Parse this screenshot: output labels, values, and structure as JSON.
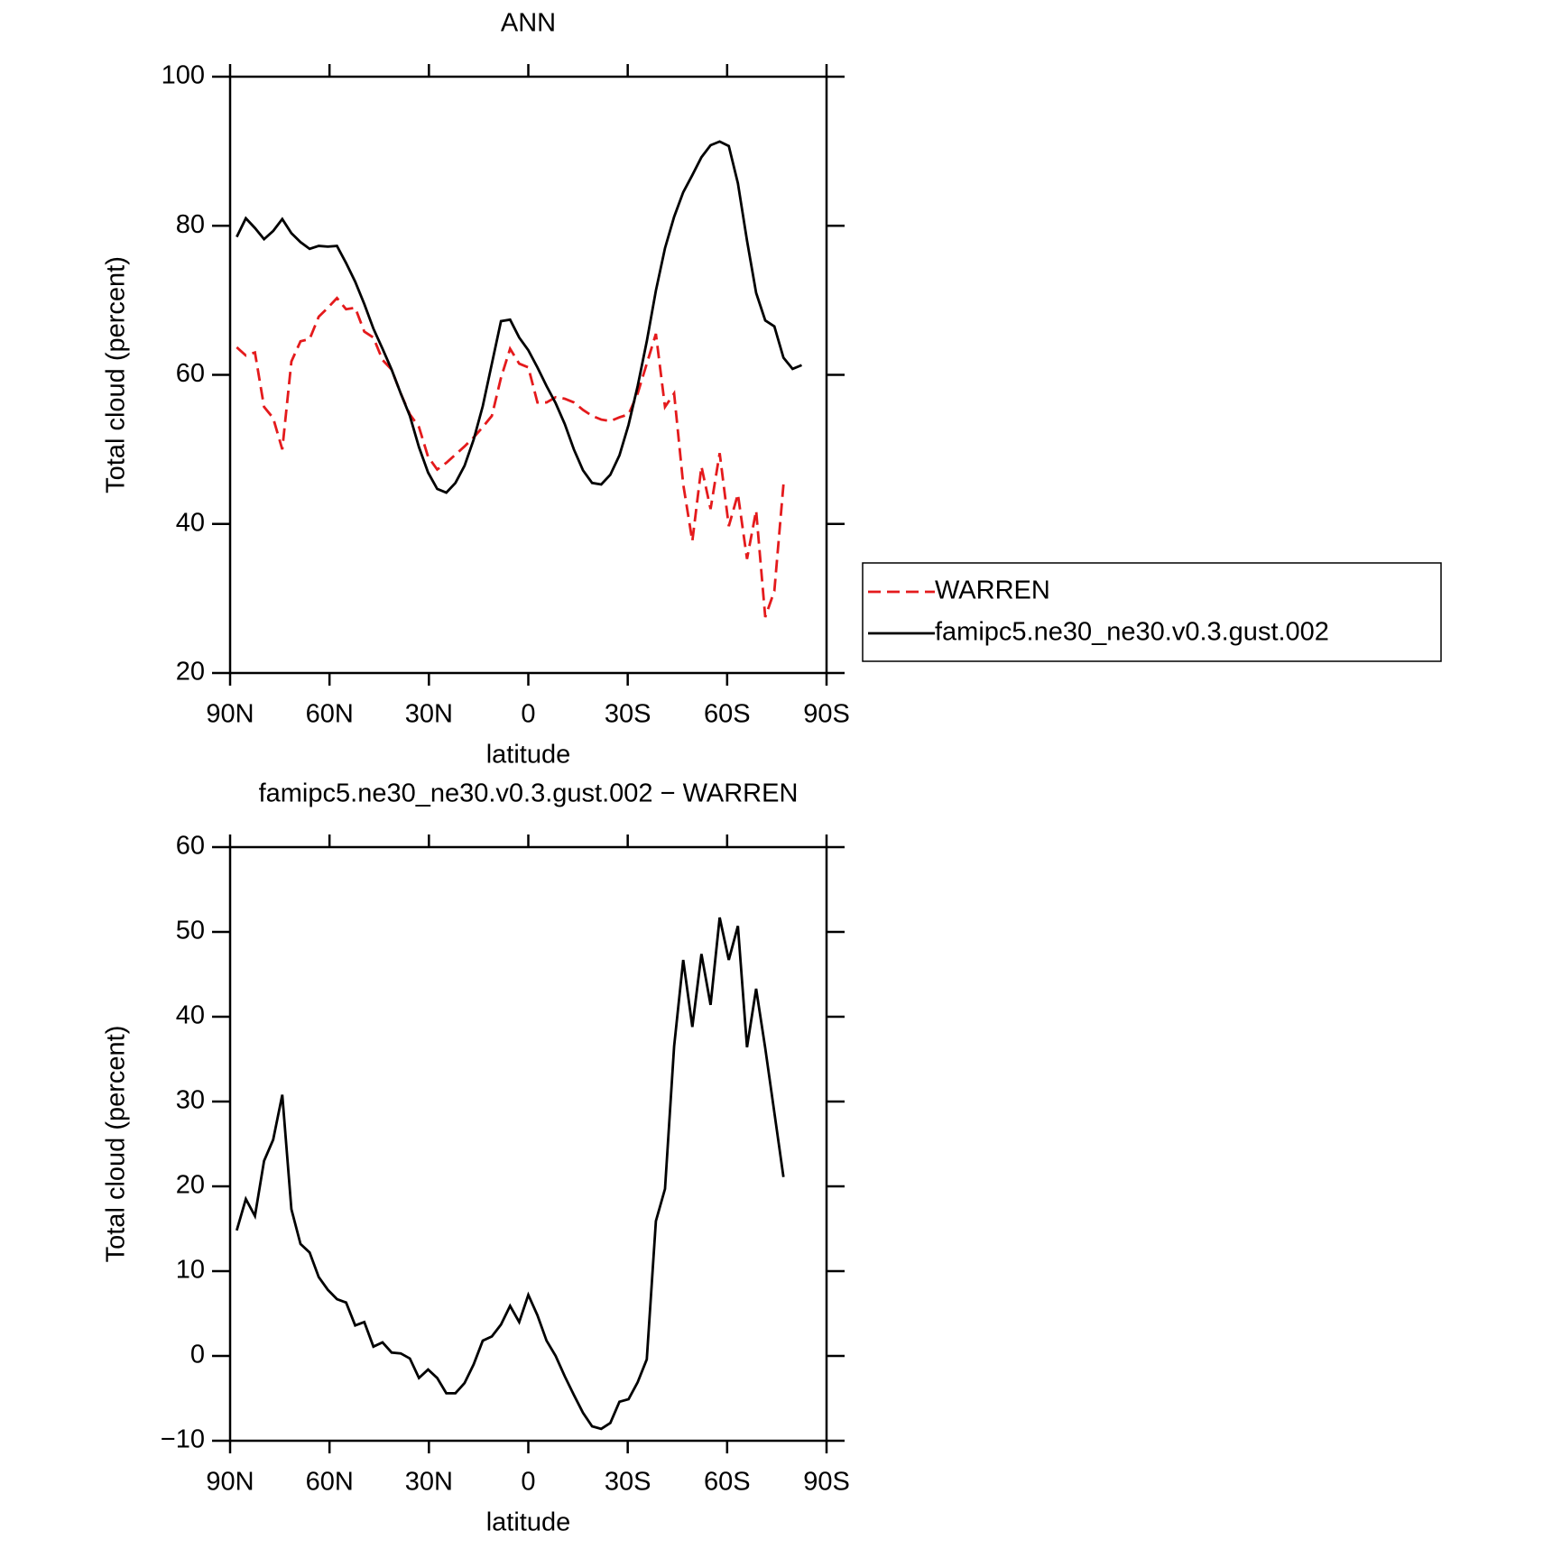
{
  "chart_data": [
    {
      "type": "line",
      "title": "ANN",
      "xlabel": "latitude",
      "ylabel": "Total cloud (percent)",
      "x": [
        88,
        85.25,
        82.5,
        79.75,
        77,
        74.25,
        71.5,
        68.75,
        66,
        63.25,
        60.5,
        57.75,
        55,
        52.25,
        49.5,
        46.75,
        44,
        41.25,
        38.5,
        35.75,
        33,
        30.25,
        27.5,
        24.75,
        22,
        19.25,
        16.5,
        13.75,
        11,
        8.25,
        5.5,
        2.75,
        0,
        -2.75,
        -5.5,
        -8.25,
        -11,
        -13.75,
        -16.5,
        -19.25,
        -22,
        -24.75,
        -27.5,
        -30.25,
        -33,
        -35.75,
        -38.5,
        -41.25,
        -44,
        -46.75,
        -49.5,
        -52.25,
        -55,
        -57.75,
        -60.5,
        -63.25,
        -66,
        -68.75,
        -71.5,
        -74.25,
        -77,
        -79.75,
        -82.5
      ],
      "series": [
        {
          "name": "WARREN",
          "color": "#e41a1c",
          "dash": true,
          "values": [
            63.7,
            62.6,
            63,
            55.7,
            54.2,
            50,
            61.8,
            64.5,
            64.8,
            67.8,
            69,
            70.3,
            68.8,
            69,
            65.8,
            65,
            62,
            60.7,
            57.5,
            54.7,
            53,
            49,
            47.3,
            48.2,
            49.3,
            50.4,
            51.6,
            53,
            54.5,
            59.6,
            63.5,
            61.5,
            61,
            56.3,
            56.3,
            57,
            56.8,
            56.3,
            55.3,
            54.5,
            54,
            53.8,
            54.3,
            54.7,
            57.5,
            61.5,
            65.5,
            55.7,
            57.5,
            45.3,
            37.7,
            47.7,
            42,
            49.5,
            39.7,
            44,
            35.3,
            41.8,
            27.5,
            31,
            45.3,
            null,
            null
          ]
        },
        {
          "name": "famipc5.ne30_ne30.v0.3.gust.002",
          "color": "#000000",
          "dash": false,
          "values": [
            78.5,
            81,
            79.7,
            78.2,
            79.3,
            80.9,
            79,
            77.8,
            76.9,
            77.3,
            77.2,
            77.3,
            75,
            72.5,
            69.5,
            66.2,
            63.5,
            60.7,
            57.5,
            54.5,
            50.3,
            46.9,
            44.7,
            44.2,
            45.5,
            47.8,
            51.3,
            55.8,
            61.5,
            67.2,
            67.4,
            65,
            63.3,
            61,
            58.5,
            56.2,
            53.4,
            50,
            47.2,
            45.5,
            45.3,
            46.6,
            49.2,
            53.3,
            58.5,
            64.5,
            71.3,
            77,
            81.2,
            84.5,
            86.8,
            89.2,
            90.8,
            91.3,
            90.7,
            85.7,
            78,
            71,
            67.3,
            66.5,
            62.3,
            60.8,
            61.3
          ]
        }
      ],
      "xlim": [
        90,
        -90
      ],
      "xticks": [
        {
          "value": 90,
          "label": "90N"
        },
        {
          "value": 60,
          "label": "60N"
        },
        {
          "value": 30,
          "label": "30N"
        },
        0,
        {
          "value": -30,
          "label": "30S"
        },
        {
          "value": -60,
          "label": "60S"
        },
        {
          "value": -90,
          "label": "90S"
        }
      ],
      "ylim": [
        20,
        100
      ],
      "yticks": [
        20,
        40,
        60,
        80,
        100
      ],
      "legend": "right"
    },
    {
      "type": "line",
      "title": "famipc5.ne30_ne30.v0.3.gust.002 − WARREN",
      "xlabel": "latitude",
      "ylabel": "Total cloud (percent)",
      "x": [
        88,
        85.25,
        82.5,
        79.75,
        77,
        74.25,
        71.5,
        68.75,
        66,
        63.25,
        60.5,
        57.75,
        55,
        52.25,
        49.5,
        46.75,
        44,
        41.25,
        38.5,
        35.75,
        33,
        30.25,
        27.5,
        24.75,
        22,
        19.25,
        16.5,
        13.75,
        11,
        8.25,
        5.5,
        2.75,
        0,
        -2.75,
        -5.5,
        -8.25,
        -11,
        -13.75,
        -16.5,
        -19.25,
        -22,
        -24.75,
        -27.5,
        -30.25,
        -33,
        -35.75,
        -38.5,
        -41.25,
        -44,
        -46.75,
        -49.5,
        -52.25,
        -55,
        -57.75,
        -60.5,
        -63.25,
        -66,
        -68.75,
        -71.5,
        -74.25,
        -77,
        -79.75,
        -82.5
      ],
      "series": [
        {
          "color": "#000000",
          "dash": false,
          "values": [
            14.8,
            18.5,
            16.5,
            23,
            25.5,
            30.8,
            17.3,
            13.2,
            12.2,
            9.3,
            7.8,
            6.7,
            6.3,
            3.6,
            4,
            1.1,
            1.6,
            0.4,
            0.3,
            -0.3,
            -2.6,
            -1.6,
            -2.6,
            -4.4,
            -4.4,
            -3.2,
            -1,
            1.8,
            2.3,
            3.7,
            5.9,
            4,
            7.2,
            4.8,
            1.8,
            0,
            -2.4,
            -4.6,
            -6.7,
            -8.3,
            -8.6,
            -7.9,
            -5.4,
            -5.1,
            -3.1,
            -0.4,
            15.9,
            19.7,
            36.5,
            46.7,
            38.8,
            47.4,
            41.4,
            51.7,
            46.7,
            50.7,
            36.4,
            43.3,
            36.3,
            28.7,
            21.1,
            null,
            null
          ]
        }
      ],
      "xlim": [
        90,
        -90
      ],
      "xticks": [
        {
          "value": 90,
          "label": "90N"
        },
        {
          "value": 60,
          "label": "60N"
        },
        {
          "value": 30,
          "label": "30N"
        },
        0,
        {
          "value": -30,
          "label": "30S"
        },
        {
          "value": -60,
          "label": "60S"
        },
        {
          "value": -90,
          "label": "90S"
        }
      ],
      "ylim": [
        -10,
        60
      ],
      "yticks": [
        {
          "value": -10,
          "label": "−10"
        },
        0,
        10,
        20,
        30,
        40,
        50,
        60
      ]
    }
  ]
}
